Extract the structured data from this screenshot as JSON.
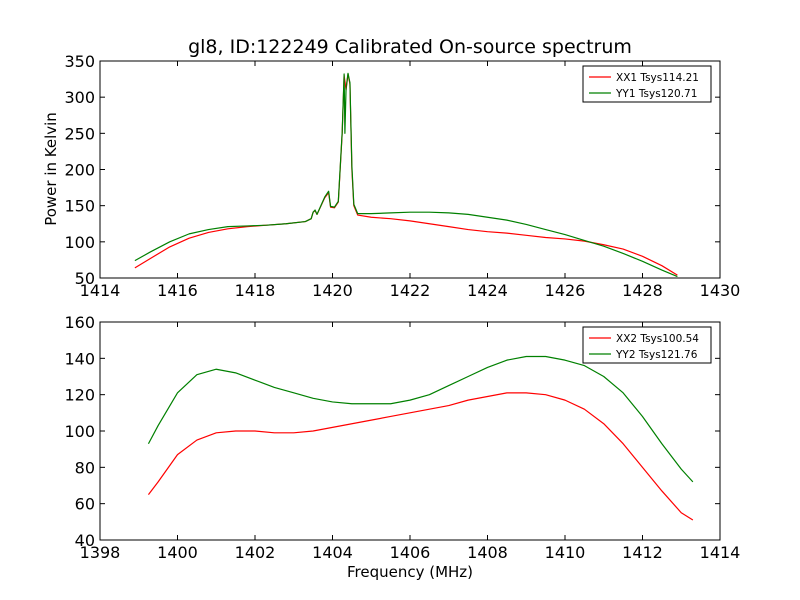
{
  "chart_data": [
    {
      "type": "line",
      "title": "gl8, ID:122249 Calibrated On-source spectrum",
      "xlabel": "",
      "ylabel": "Power in Kelvin",
      "xlim": [
        1414,
        1430
      ],
      "ylim": [
        50,
        350
      ],
      "xticks": [
        1414,
        1416,
        1418,
        1420,
        1422,
        1424,
        1426,
        1428,
        1430
      ],
      "yticks": [
        50,
        100,
        150,
        200,
        250,
        300,
        350
      ],
      "grid": false,
      "legend": "top-right",
      "series": [
        {
          "name": "XX1 Tsys114.21",
          "color": "#ff0000",
          "points": [
            [
              1414.9,
              64
            ],
            [
              1415.3,
              77
            ],
            [
              1415.8,
              93
            ],
            [
              1416.3,
              105
            ],
            [
              1416.8,
              113
            ],
            [
              1417.3,
              118
            ],
            [
              1417.8,
              121
            ],
            [
              1418.3,
              123
            ],
            [
              1418.8,
              125
            ],
            [
              1419.3,
              128
            ],
            [
              1419.45,
              132
            ],
            [
              1419.5,
              141
            ],
            [
              1419.55,
              143
            ],
            [
              1419.6,
              138
            ],
            [
              1419.8,
              161
            ],
            [
              1419.9,
              168
            ],
            [
              1419.95,
              148
            ],
            [
              1420.05,
              147
            ],
            [
              1420.15,
              155
            ],
            [
              1420.25,
              250
            ],
            [
              1420.3,
              330
            ],
            [
              1420.35,
              310
            ],
            [
              1420.4,
              332
            ],
            [
              1420.45,
              318
            ],
            [
              1420.5,
              200
            ],
            [
              1420.55,
              150
            ],
            [
              1420.65,
              137
            ],
            [
              1421.0,
              134
            ],
            [
              1421.5,
              132
            ],
            [
              1422.0,
              129
            ],
            [
              1422.5,
              125
            ],
            [
              1423.0,
              121
            ],
            [
              1423.5,
              117
            ],
            [
              1424.0,
              114
            ],
            [
              1424.5,
              112
            ],
            [
              1425.0,
              109
            ],
            [
              1425.5,
              106
            ],
            [
              1426.0,
              104
            ],
            [
              1426.5,
              101
            ],
            [
              1427.0,
              96
            ],
            [
              1427.5,
              90
            ],
            [
              1428.0,
              80
            ],
            [
              1428.5,
              67
            ],
            [
              1428.9,
              54
            ]
          ]
        },
        {
          "name": "YY1 Tsys120.71",
          "color": "#008000",
          "points": [
            [
              1414.9,
              74
            ],
            [
              1415.3,
              86
            ],
            [
              1415.8,
              100
            ],
            [
              1416.3,
              111
            ],
            [
              1416.8,
              117
            ],
            [
              1417.3,
              121
            ],
            [
              1417.8,
              122
            ],
            [
              1418.3,
              123
            ],
            [
              1418.8,
              125
            ],
            [
              1419.3,
              128
            ],
            [
              1419.45,
              132
            ],
            [
              1419.5,
              141
            ],
            [
              1419.55,
              144
            ],
            [
              1419.6,
              138
            ],
            [
              1419.8,
              162
            ],
            [
              1419.9,
              170
            ],
            [
              1419.95,
              149
            ],
            [
              1420.05,
              148
            ],
            [
              1420.15,
              156
            ],
            [
              1420.25,
              252
            ],
            [
              1420.3,
              332
            ],
            [
              1420.32,
              250
            ],
            [
              1420.35,
              312
            ],
            [
              1420.4,
              333
            ],
            [
              1420.45,
              320
            ],
            [
              1420.5,
              205
            ],
            [
              1420.55,
              152
            ],
            [
              1420.65,
              139
            ],
            [
              1421.0,
              139
            ],
            [
              1421.5,
              140
            ],
            [
              1422.0,
              141
            ],
            [
              1422.5,
              141
            ],
            [
              1423.0,
              140
            ],
            [
              1423.5,
              138
            ],
            [
              1424.0,
              134
            ],
            [
              1424.5,
              130
            ],
            [
              1425.0,
              124
            ],
            [
              1425.5,
              117
            ],
            [
              1426.0,
              110
            ],
            [
              1426.5,
              102
            ],
            [
              1427.0,
              94
            ],
            [
              1427.5,
              84
            ],
            [
              1428.0,
              73
            ],
            [
              1428.5,
              61
            ],
            [
              1428.9,
              52
            ]
          ]
        }
      ]
    },
    {
      "type": "line",
      "title": "",
      "xlabel": "Frequency (MHz)",
      "ylabel": "",
      "xlim": [
        1398,
        1414
      ],
      "ylim": [
        40,
        160
      ],
      "xticks": [
        1398,
        1400,
        1402,
        1404,
        1406,
        1408,
        1410,
        1412,
        1414
      ],
      "yticks": [
        40,
        60,
        80,
        100,
        120,
        140,
        160
      ],
      "grid": false,
      "legend": "top-right",
      "series": [
        {
          "name": "XX2 Tsys100.54",
          "color": "#ff0000",
          "points": [
            [
              1399.25,
              65
            ],
            [
              1399.5,
              72
            ],
            [
              1400.0,
              87
            ],
            [
              1400.5,
              95
            ],
            [
              1401.0,
              99
            ],
            [
              1401.5,
              100
            ],
            [
              1402.0,
              100
            ],
            [
              1402.5,
              99
            ],
            [
              1403.0,
              99
            ],
            [
              1403.5,
              100
            ],
            [
              1404.0,
              102
            ],
            [
              1404.5,
              104
            ],
            [
              1405.0,
              106
            ],
            [
              1405.5,
              108
            ],
            [
              1406.0,
              110
            ],
            [
              1406.5,
              112
            ],
            [
              1407.0,
              114
            ],
            [
              1407.5,
              117
            ],
            [
              1408.0,
              119
            ],
            [
              1408.5,
              121
            ],
            [
              1409.0,
              121
            ],
            [
              1409.5,
              120
            ],
            [
              1410.0,
              117
            ],
            [
              1410.5,
              112
            ],
            [
              1411.0,
              104
            ],
            [
              1411.5,
              93
            ],
            [
              1412.0,
              80
            ],
            [
              1412.5,
              67
            ],
            [
              1413.0,
              55
            ],
            [
              1413.3,
              51
            ]
          ]
        },
        {
          "name": "YY2 Tsys121.76",
          "color": "#008000",
          "points": [
            [
              1399.25,
              93
            ],
            [
              1399.5,
              103
            ],
            [
              1400.0,
              121
            ],
            [
              1400.5,
              131
            ],
            [
              1401.0,
              134
            ],
            [
              1401.5,
              132
            ],
            [
              1402.0,
              128
            ],
            [
              1402.5,
              124
            ],
            [
              1403.0,
              121
            ],
            [
              1403.5,
              118
            ],
            [
              1404.0,
              116
            ],
            [
              1404.5,
              115
            ],
            [
              1405.0,
              115
            ],
            [
              1405.5,
              115
            ],
            [
              1406.0,
              117
            ],
            [
              1406.5,
              120
            ],
            [
              1407.0,
              125
            ],
            [
              1407.5,
              130
            ],
            [
              1408.0,
              135
            ],
            [
              1408.5,
              139
            ],
            [
              1409.0,
              141
            ],
            [
              1409.5,
              141
            ],
            [
              1410.0,
              139
            ],
            [
              1410.5,
              136
            ],
            [
              1411.0,
              130
            ],
            [
              1411.5,
              121
            ],
            [
              1412.0,
              108
            ],
            [
              1412.5,
              93
            ],
            [
              1413.0,
              79
            ],
            [
              1413.3,
              72
            ]
          ]
        }
      ]
    }
  ]
}
